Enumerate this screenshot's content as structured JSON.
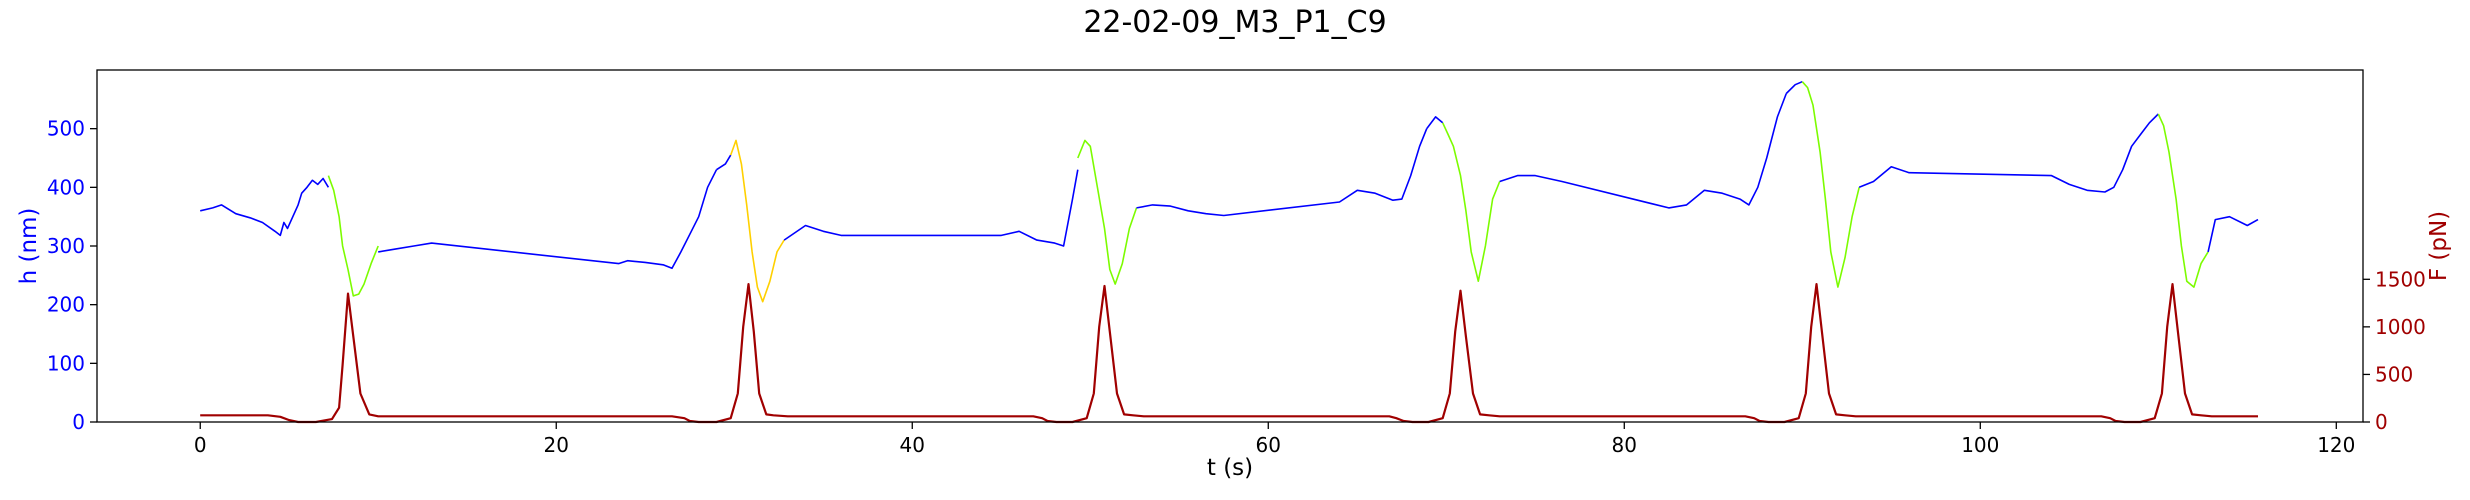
{
  "chart_data": {
    "type": "line",
    "title": "22-02-09_M3_P1_C9",
    "xlabel": "t (s)",
    "ylabel_left": "h (nm)",
    "ylabel_right": "F (pN)",
    "xlim": [
      -5.8,
      121.5
    ],
    "ylim_left": [
      0,
      600
    ],
    "ylim_right": [
      0,
      3700
    ],
    "x_ticks": [
      0,
      20,
      40,
      60,
      80,
      100,
      120
    ],
    "y_left_ticks": [
      0,
      100,
      200,
      300,
      400,
      500
    ],
    "y_right_ticks": [
      0,
      500,
      1000,
      1500
    ],
    "grid": false,
    "colors": {
      "height_baseline": "#0000ff",
      "height_green": "#7cfc00",
      "height_gold": "#ffd000",
      "force": "#a00000",
      "left_axis": "#0000ff",
      "right_axis": "#a00000"
    },
    "series": [
      {
        "axis": "left",
        "color": "height_baseline",
        "segments": [
          {
            "color": "height_baseline",
            "x": [
              0,
              0.7,
              1.2,
              2,
              2.8,
              3.5,
              4.2,
              4.5,
              4.7,
              4.9,
              5.2,
              5.5,
              5.7,
              6,
              6.3,
              6.6,
              6.9,
              7.2
            ],
            "y": [
              360,
              365,
              370,
              355,
              348,
              340,
              325,
              318,
              340,
              330,
              350,
              370,
              390,
              400,
              412,
              405,
              415,
              400
            ]
          },
          {
            "color": "height_green",
            "x": [
              7.2,
              7.5,
              7.8,
              8,
              8.3,
              8.6,
              8.9,
              9.2,
              9.6,
              10
            ],
            "y": [
              420,
              395,
              350,
              300,
              260,
              215,
              218,
              235,
              270,
              300
            ]
          },
          {
            "color": "height_baseline",
            "x": [
              10,
              11,
              12,
              13,
              23.5,
              24,
              25,
              26,
              26.5,
              27,
              27.5,
              28,
              28.5,
              29
            ],
            "y": [
              290,
              295,
              300,
              305,
              270,
              275,
              272,
              268,
              262,
              290,
              320,
              350,
              400,
              430
            ]
          },
          {
            "color": "height_baseline",
            "x": [
              29,
              29.5,
              29.8
            ],
            "y": [
              430,
              440,
              455
            ]
          },
          {
            "color": "height_gold",
            "x": [
              29.8,
              30.1,
              30.4,
              30.7,
              31,
              31.3,
              31.6,
              32,
              32.4,
              32.8
            ],
            "y": [
              455,
              480,
              440,
              370,
              290,
              230,
              205,
              240,
              290,
              310
            ]
          },
          {
            "color": "height_baseline",
            "x": [
              32.8,
              34,
              35,
              36,
              45,
              46,
              47,
              48,
              48.5,
              49,
              49.3
            ],
            "y": [
              310,
              335,
              325,
              318,
              318,
              325,
              310,
              305,
              300,
              380,
              430
            ]
          },
          {
            "color": "height_green",
            "x": [
              49.3,
              49.7,
              50,
              50.4,
              50.8,
              51.1,
              51.4,
              51.8,
              52.2,
              52.6
            ],
            "y": [
              450,
              480,
              470,
              400,
              330,
              260,
              235,
              270,
              330,
              365
            ]
          },
          {
            "color": "height_baseline",
            "x": [
              52.6,
              53.5,
              54.5,
              55.5,
              56.5,
              57.5,
              64,
              65,
              66,
              67,
              67.5,
              68,
              68.5,
              68.9
            ],
            "y": [
              365,
              370,
              368,
              360,
              355,
              352,
              375,
              395,
              390,
              378,
              380,
              420,
              470,
              500
            ]
          },
          {
            "color": "height_baseline",
            "x": [
              68.9,
              69.4,
              69.8
            ],
            "y": [
              500,
              520,
              510
            ]
          },
          {
            "color": "height_green",
            "x": [
              69.8,
              70.1,
              70.4,
              70.8,
              71.1,
              71.4,
              71.8,
              72.2,
              72.6,
              73
            ],
            "y": [
              510,
              490,
              470,
              420,
              360,
              290,
              240,
              300,
              380,
              410
            ]
          },
          {
            "color": "height_baseline",
            "x": [
              73,
              74,
              75,
              76.5,
              82.5,
              83.5,
              84.5,
              85.5,
              86.5,
              87,
              87.5,
              88,
              88.6,
              89.1
            ],
            "y": [
              410,
              420,
              420,
              410,
              365,
              370,
              395,
              390,
              380,
              370,
              400,
              450,
              520,
              560
            ]
          },
          {
            "color": "height_baseline",
            "x": [
              89.1,
              89.6,
              90
            ],
            "y": [
              560,
              575,
              580
            ]
          },
          {
            "color": "height_green",
            "x": [
              90,
              90.3,
              90.6,
              91,
              91.3,
              91.6,
              92,
              92.4,
              92.8,
              93.2
            ],
            "y": [
              580,
              570,
              540,
              460,
              380,
              290,
              230,
              280,
              350,
              400
            ]
          },
          {
            "color": "height_baseline",
            "x": [
              93.2,
              94,
              95,
              96,
              104,
              105,
              106,
              107,
              107.5,
              108,
              108.5,
              109,
              109.5,
              110
            ],
            "y": [
              400,
              410,
              435,
              425,
              420,
              405,
              395,
              392,
              400,
              430,
              470,
              490,
              510,
              525
            ]
          },
          {
            "color": "height_green",
            "x": [
              110,
              110.3,
              110.6,
              111,
              111.3,
              111.6,
              112,
              112.4,
              112.8
            ],
            "y": [
              525,
              505,
              460,
              380,
              300,
              240,
              230,
              270,
              290
            ]
          },
          {
            "color": "height_baseline",
            "x": [
              112.8,
              113.2,
              114,
              115,
              115.6
            ],
            "y": [
              290,
              345,
              350,
              335,
              345
            ]
          }
        ]
      },
      {
        "axis": "right",
        "color": "force",
        "x": [
          0,
          3.8,
          4.5,
          5,
          5.5,
          6.5,
          7.4,
          7.8,
          8,
          8.3,
          8.6,
          9,
          9.5,
          10,
          11,
          26.5,
          27.2,
          27.5,
          28,
          29,
          29.8,
          30.2,
          30.5,
          30.8,
          31.1,
          31.4,
          31.8,
          32.2,
          33,
          46.8,
          47.3,
          47.6,
          48.1,
          49,
          49.8,
          50.2,
          50.5,
          50.8,
          51.1,
          51.5,
          51.9,
          52.4,
          53,
          66.8,
          67.2,
          67.6,
          68.1,
          69,
          69.8,
          70.2,
          70.5,
          70.8,
          71.1,
          71.5,
          71.9,
          72.4,
          73,
          86.8,
          87.3,
          87.6,
          88.1,
          89,
          89.8,
          90.2,
          90.5,
          90.8,
          91.1,
          91.5,
          91.9,
          92.4,
          93,
          106.8,
          107.3,
          107.6,
          108.1,
          109,
          109.8,
          110.2,
          110.5,
          110.8,
          111.1,
          111.5,
          111.9,
          112.4,
          113,
          115.6
        ],
        "y": [
          70,
          70,
          55,
          20,
          0,
          0,
          30,
          150,
          600,
          1350,
          900,
          300,
          80,
          60,
          60,
          60,
          40,
          10,
          0,
          0,
          40,
          300,
          1000,
          1450,
          950,
          300,
          80,
          70,
          60,
          60,
          40,
          10,
          0,
          0,
          40,
          300,
          1000,
          1430,
          950,
          300,
          80,
          70,
          60,
          60,
          40,
          10,
          0,
          0,
          40,
          300,
          950,
          1380,
          900,
          300,
          80,
          70,
          60,
          60,
          40,
          10,
          0,
          0,
          40,
          300,
          1000,
          1450,
          950,
          300,
          80,
          70,
          60,
          60,
          40,
          10,
          0,
          0,
          40,
          300,
          1000,
          1450,
          950,
          300,
          80,
          70,
          60,
          60
        ]
      }
    ]
  }
}
